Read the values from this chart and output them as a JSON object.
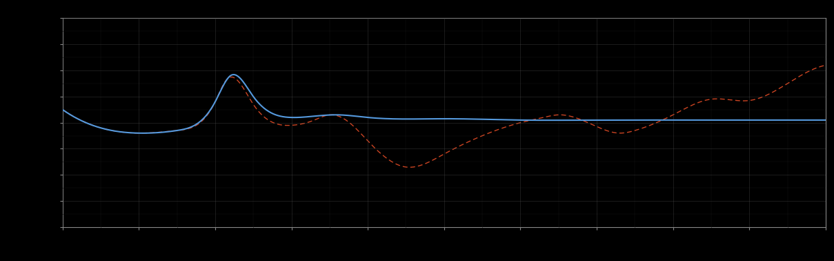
{
  "background_color": "#000000",
  "plot_bg_color": "#000000",
  "grid_color": "#555555",
  "blue_line_color": "#5599dd",
  "red_line_color": "#cc4422",
  "figsize": [
    12.09,
    3.78
  ],
  "dpi": 100,
  "grid_alpha": 0.45,
  "blue_linewidth": 1.5,
  "red_linewidth": 1.0,
  "blue_x": [
    0,
    0.5,
    1.0,
    1.5,
    2.0,
    2.2,
    2.5,
    3.0,
    3.3,
    3.6,
    4.0,
    5.0,
    6.0,
    7.0,
    8.0,
    9.0,
    10.0
  ],
  "blue_y": [
    5.5,
    4.8,
    4.6,
    4.7,
    5.8,
    6.8,
    6.0,
    5.2,
    5.25,
    5.3,
    5.2,
    5.15,
    5.1,
    5.1,
    5.1,
    5.1,
    5.1
  ],
  "red_x": [
    0,
    0.5,
    1.0,
    1.5,
    2.0,
    2.15,
    2.5,
    3.0,
    3.3,
    3.5,
    3.8,
    4.0,
    4.5,
    5.0,
    5.5,
    6.0,
    6.3,
    6.5,
    7.0,
    7.3,
    7.5,
    8.0,
    8.5,
    9.0,
    9.5,
    10.0
  ],
  "red_y": [
    5.5,
    4.8,
    4.6,
    4.7,
    5.8,
    6.65,
    5.7,
    4.9,
    5.1,
    5.3,
    4.9,
    4.3,
    3.3,
    3.8,
    4.5,
    5.0,
    5.2,
    5.3,
    4.85,
    4.6,
    4.7,
    5.3,
    5.9,
    5.85,
    6.5,
    7.2
  ],
  "n_grid_x": 10,
  "n_grid_y": 8,
  "xlim": [
    0,
    10
  ],
  "ylim": [
    1,
    9
  ]
}
